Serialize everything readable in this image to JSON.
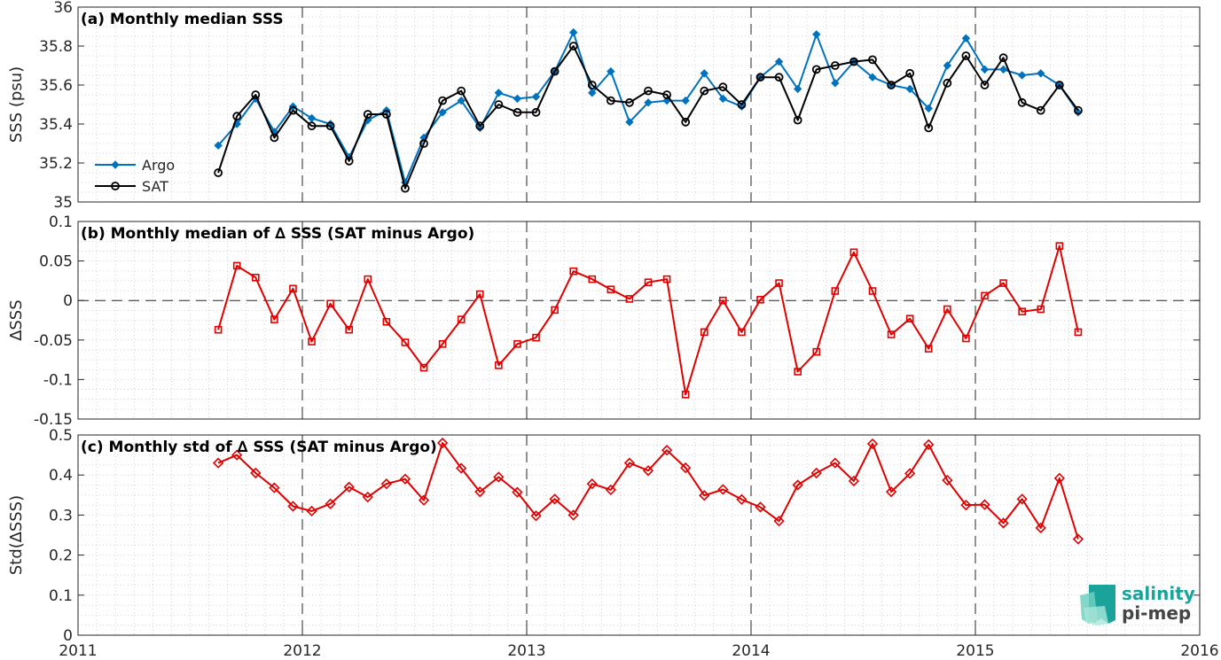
{
  "colors": {
    "argo": "#0072BD",
    "sat": "#000000",
    "delta": "#E00000",
    "logo": "#1aa39a"
  },
  "logo": {
    "line1": "salinity",
    "line2": "pi-mep"
  },
  "chart_data": [
    {
      "type": "line",
      "title": "(a) Monthly median SSS",
      "ylabel": "SSS (psu)",
      "xlim": [
        2011,
        2016
      ],
      "ylim": [
        35,
        36
      ],
      "yticks": [
        35,
        35.2,
        35.4,
        35.6,
        35.8,
        36
      ],
      "ytick_labels": [
        "35",
        "35.2",
        "35.4",
        "35.6",
        "35.8",
        "36"
      ],
      "legend_position": "bottom-left",
      "x_start": 2011.625,
      "x_step": 0.08333,
      "series": [
        {
          "name": "Argo",
          "marker": "diamond",
          "color": "#0072BD",
          "values": [
            35.29,
            35.4,
            35.53,
            35.36,
            35.49,
            35.43,
            35.4,
            35.23,
            35.42,
            35.47,
            35.1,
            35.33,
            35.46,
            35.52,
            35.38,
            35.56,
            35.53,
            35.54,
            35.67,
            35.87,
            35.56,
            35.67,
            35.41,
            35.51,
            35.52,
            35.52,
            35.66,
            35.53,
            35.49,
            35.64,
            35.72,
            35.58,
            35.86,
            35.61,
            35.72,
            35.64,
            35.6,
            35.58,
            35.48,
            35.7,
            35.84,
            35.68,
            35.68,
            35.65,
            35.66,
            35.6,
            35.46
          ]
        },
        {
          "name": "SAT",
          "marker": "circle",
          "color": "#000000",
          "values": [
            35.15,
            35.44,
            35.55,
            35.33,
            35.47,
            35.39,
            35.39,
            35.21,
            35.45,
            35.45,
            35.07,
            35.3,
            35.52,
            35.57,
            35.39,
            35.5,
            35.46,
            35.46,
            35.67,
            35.8,
            35.6,
            35.52,
            35.51,
            35.57,
            35.55,
            35.41,
            35.57,
            35.59,
            35.5,
            35.64,
            35.64,
            35.42,
            35.68,
            35.7,
            35.72,
            35.73,
            35.6,
            35.66,
            35.38,
            35.61,
            35.75,
            35.6,
            35.74,
            35.51,
            35.47,
            35.6,
            35.47
          ]
        }
      ]
    },
    {
      "type": "line",
      "title": "(b) Monthly median of ∆ SSS (SAT minus Argo)",
      "ylabel": "∆SSS",
      "xlim": [
        2011,
        2016
      ],
      "ylim": [
        -0.15,
        0.1
      ],
      "yticks": [
        -0.15,
        -0.1,
        -0.05,
        0,
        0.05,
        0.1
      ],
      "ytick_labels": [
        "-0.15",
        "-0.1",
        "-0.05",
        "0",
        "0.05",
        "0.1"
      ],
      "x_start": 2011.625,
      "x_step": 0.08333,
      "series": [
        {
          "marker": "square",
          "color": "#E00000",
          "values": [
            -0.037,
            0.044,
            0.029,
            -0.024,
            0.015,
            -0.052,
            -0.004,
            -0.037,
            0.027,
            -0.027,
            -0.053,
            -0.085,
            -0.055,
            -0.024,
            0.008,
            -0.082,
            -0.055,
            -0.047,
            -0.012,
            0.037,
            0.027,
            0.014,
            0.002,
            0.023,
            0.027,
            -0.119,
            -0.04,
            0.0,
            -0.04,
            0.001,
            0.022,
            -0.09,
            -0.065,
            0.012,
            0.061,
            0.012,
            -0.043,
            -0.023,
            -0.061,
            -0.011,
            -0.048,
            0.006,
            0.022,
            -0.014,
            -0.011,
            0.069,
            -0.04
          ]
        }
      ]
    },
    {
      "type": "line",
      "title": "(c) Monthly std of ∆ SSS (SAT minus Argo)",
      "ylabel": "Std(∆SSS)",
      "xlim": [
        2011,
        2016
      ],
      "ylim": [
        0,
        0.5
      ],
      "yticks": [
        0,
        0.1,
        0.2,
        0.3,
        0.4,
        0.5
      ],
      "ytick_labels": [
        "0",
        "0.1",
        "0.2",
        "0.3",
        "0.4",
        "0.5"
      ],
      "xticks": [
        2011,
        2012,
        2013,
        2014,
        2015,
        2016
      ],
      "xtick_labels": [
        "2011",
        "2012",
        "2013",
        "2014",
        "2015",
        "2016"
      ],
      "x_start": 2011.625,
      "x_step": 0.08333,
      "series": [
        {
          "marker": "diamond",
          "color": "#E00000",
          "values": [
            0.43,
            0.45,
            0.405,
            0.368,
            0.322,
            0.31,
            0.328,
            0.37,
            0.345,
            0.378,
            0.39,
            0.337,
            0.48,
            0.417,
            0.358,
            0.395,
            0.357,
            0.298,
            0.34,
            0.3,
            0.378,
            0.363,
            0.43,
            0.411,
            0.462,
            0.418,
            0.349,
            0.364,
            0.339,
            0.32,
            0.285,
            0.375,
            0.405,
            0.43,
            0.385,
            0.478,
            0.358,
            0.404,
            0.476,
            0.387,
            0.325,
            0.326,
            0.28,
            0.34,
            0.268,
            0.392,
            0.24
          ]
        }
      ]
    }
  ]
}
